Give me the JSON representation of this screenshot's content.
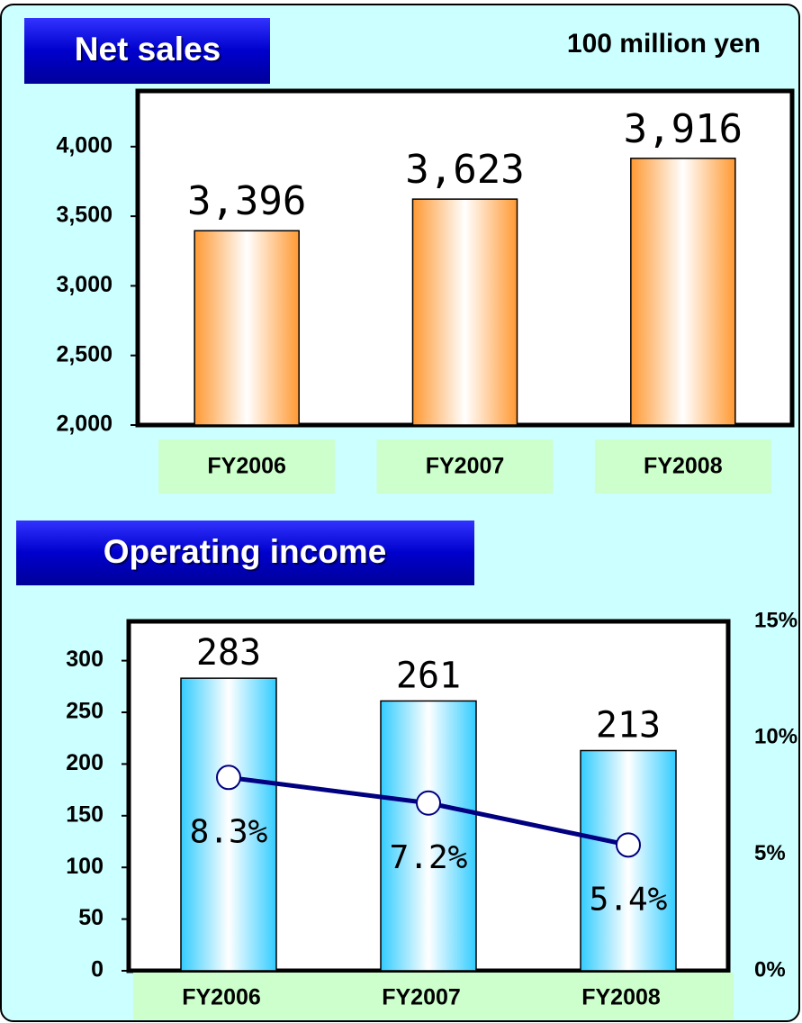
{
  "chart_data": [
    {
      "type": "bar",
      "title": "Net sales",
      "unit": "100 million yen",
      "categories": [
        "FY2006",
        "FY2007",
        "FY2008"
      ],
      "values": [
        3396,
        3623,
        3916
      ],
      "value_labels": [
        "3,396",
        "3,623",
        "3,916"
      ],
      "color": "#ff9933",
      "ylim": [
        2000,
        4400
      ],
      "yticks": [
        {
          "value": 2000,
          "label": "2,000"
        },
        {
          "value": 2500,
          "label": "2,500"
        },
        {
          "value": 3000,
          "label": "3,000"
        },
        {
          "value": 3500,
          "label": "3,500"
        },
        {
          "value": 4000,
          "label": "4,000"
        }
      ]
    },
    {
      "type": "combo",
      "title": "Operating income",
      "categories": [
        "FY2006",
        "FY2007",
        "FY2008"
      ],
      "series": [
        {
          "type": "bar",
          "color": "#33ccff",
          "values": [
            283,
            261,
            213
          ]
        },
        {
          "type": "line",
          "axis": "y2",
          "color": "#000080",
          "values": [
            8.3,
            7.2,
            5.4
          ],
          "value_labels": [
            "8.3%",
            "7.2%",
            "5.4%"
          ]
        }
      ],
      "ylim": [
        0,
        338
      ],
      "yticks": [
        0,
        50,
        100,
        150,
        200,
        250,
        300
      ],
      "y2lim": [
        0,
        15
      ],
      "y2ticks": [
        {
          "value": 0,
          "label": "0%"
        },
        {
          "value": 5,
          "label": "5%"
        },
        {
          "value": 10,
          "label": "10%"
        },
        {
          "value": 15,
          "label": "15%"
        }
      ]
    }
  ]
}
